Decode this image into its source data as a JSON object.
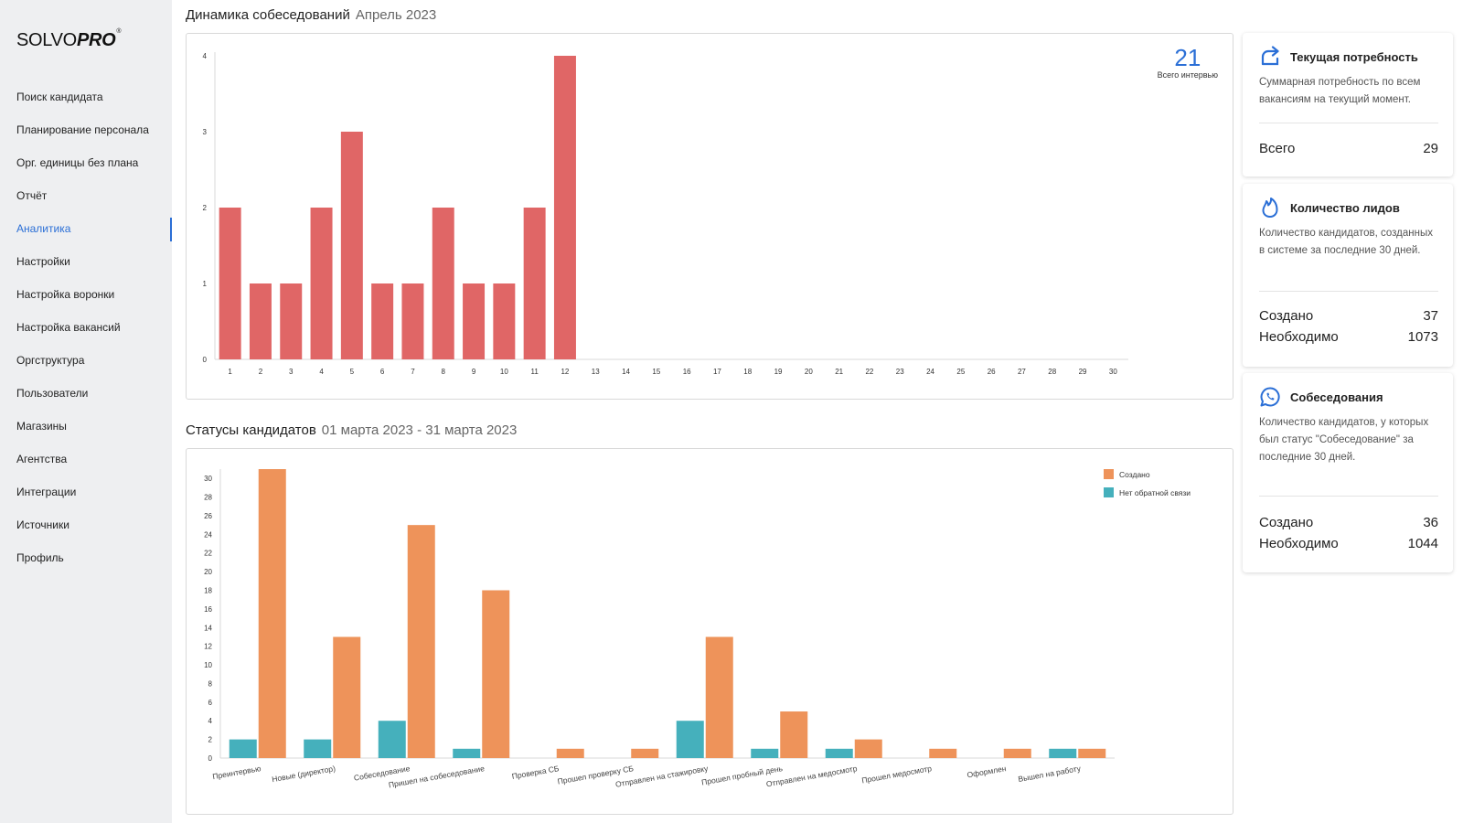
{
  "sidebar": {
    "logo": {
      "solvo": "SOLVO",
      "pro": "PRO",
      "reg": "®"
    },
    "items": [
      {
        "label": "Поиск кандидата",
        "name": "sidebar-item-candidate-search"
      },
      {
        "label": "Планирование персонала",
        "name": "sidebar-item-staff-planning"
      },
      {
        "label": "Орг. единицы без плана",
        "name": "sidebar-item-org-units-no-plan"
      },
      {
        "label": "Отчёт",
        "name": "sidebar-item-report"
      },
      {
        "label": "Аналитика",
        "name": "sidebar-item-analytics",
        "active": true
      },
      {
        "label": "Настройки",
        "name": "sidebar-item-settings"
      },
      {
        "label": "Настройка воронки",
        "name": "sidebar-item-funnel-settings"
      },
      {
        "label": "Настройка вакансий",
        "name": "sidebar-item-vacancy-settings"
      },
      {
        "label": "Оргструктура",
        "name": "sidebar-item-org-structure"
      },
      {
        "label": "Пользователи",
        "name": "sidebar-item-users"
      },
      {
        "label": "Магазины",
        "name": "sidebar-item-stores"
      },
      {
        "label": "Агентства",
        "name": "sidebar-item-agencies"
      },
      {
        "label": "Интеграции",
        "name": "sidebar-item-integrations"
      },
      {
        "label": "Источники",
        "name": "sidebar-item-sources"
      },
      {
        "label": "Профиль",
        "name": "sidebar-item-profile"
      }
    ]
  },
  "interviews_section": {
    "title": "Динамика собеседований",
    "period": "Апрель 2023",
    "total_value": "21",
    "total_label": "Всего интервью"
  },
  "statuses_section": {
    "title": "Статусы кандидатов",
    "period": "01 марта 2023 - 31 марта 2023"
  },
  "cards": {
    "current_need": {
      "title": "Текущая потребность",
      "icon": "share-arrow-icon",
      "description": "Суммарная потребность по всем вакансиям на текущий момент.",
      "rows": [
        {
          "label": "Всего",
          "value": "29"
        }
      ]
    },
    "leads": {
      "title": "Количество лидов",
      "icon": "flame-icon",
      "description": "Количество кандидатов, созданных в системе за последние 30 дней.",
      "rows": [
        {
          "label": "Создано",
          "value": "37"
        },
        {
          "label": "Необходимо",
          "value": "1073"
        }
      ]
    },
    "interviews": {
      "title": "Собеседования",
      "icon": "whatsapp-icon",
      "description": "Количество кандидатов, у которых был статус \"Собеседование\" за последние 30 дней.",
      "rows": [
        {
          "label": "Создано",
          "value": "36"
        },
        {
          "label": "Необходимо",
          "value": "1044"
        }
      ]
    }
  },
  "colors": {
    "accent": "#2b6fd6",
    "bar_red": "#e06666",
    "bar_orange": "#ee935a",
    "bar_teal": "#45b0bc"
  },
  "chart_data": [
    {
      "type": "bar",
      "categories": [
        "1",
        "2",
        "3",
        "4",
        "5",
        "6",
        "7",
        "8",
        "9",
        "10",
        "11",
        "12",
        "13",
        "14",
        "15",
        "16",
        "17",
        "18",
        "19",
        "20",
        "21",
        "22",
        "23",
        "24",
        "25",
        "26",
        "27",
        "28",
        "29",
        "30"
      ],
      "values": [
        2,
        1,
        1,
        2,
        3,
        1,
        1,
        2,
        1,
        1,
        2,
        4,
        0,
        0,
        0,
        0,
        0,
        0,
        0,
        0,
        0,
        0,
        0,
        0,
        0,
        0,
        0,
        0,
        0,
        0
      ],
      "yticks": [
        0,
        1,
        2,
        3,
        4
      ],
      "ylim": [
        0,
        4
      ],
      "grid": false,
      "color": "#e06666"
    },
    {
      "type": "bar",
      "categories": [
        "Преинтервью",
        "Новые (директор)",
        "Собеседование",
        "Пришел на собеседование",
        "Проверка СБ",
        "Прошел проверку СБ",
        "Отправлен на стажировку",
        "Прошел пробный день",
        "Отправлен на медосмотр",
        "Прошел медосмотр",
        "Оформлен",
        "Вышел на работу"
      ],
      "series": [
        {
          "name": "Нет обратной связи",
          "values": [
            2,
            2,
            4,
            1,
            0,
            0,
            4,
            1,
            1,
            0,
            0,
            1
          ],
          "color": "#45b0bc"
        },
        {
          "name": "Создано",
          "values": [
            31,
            13,
            25,
            18,
            1,
            1,
            13,
            5,
            2,
            1,
            1,
            1
          ],
          "color": "#ee935a"
        }
      ],
      "legend_order": [
        "Создано",
        "Нет обратной связи"
      ],
      "yticks": [
        0,
        2,
        4,
        6,
        8,
        10,
        12,
        14,
        16,
        18,
        20,
        22,
        24,
        26,
        28,
        30
      ],
      "ylim": [
        0,
        31
      ],
      "grid": false,
      "legend_position": "top-right"
    }
  ]
}
